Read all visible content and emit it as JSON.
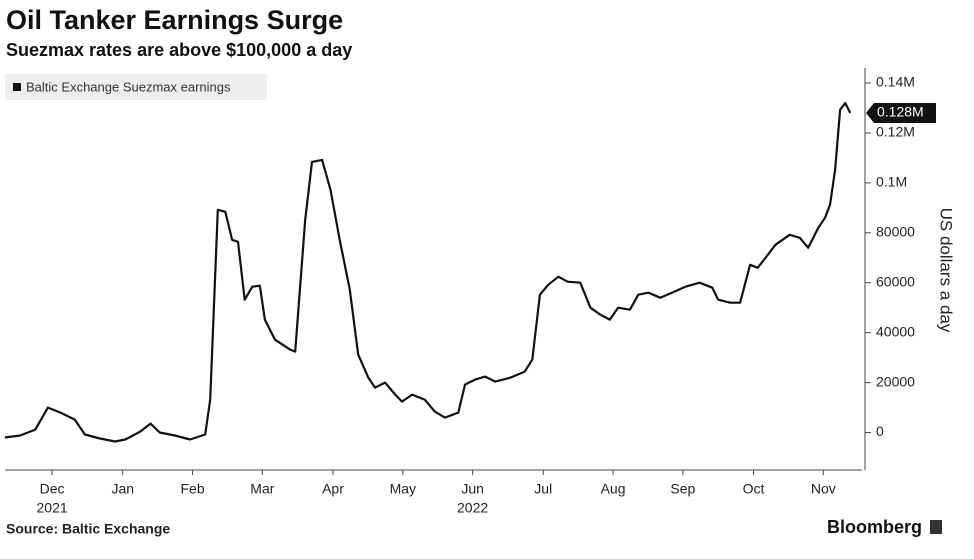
{
  "chart_data": {
    "type": "line",
    "title": "Oil Tanker Earnings Surge",
    "subtitle": "Suezmax rates are above $100,000 a day",
    "y_label": "US dollars a day",
    "source": "Source: Baltic Exchange",
    "brand": "Bloomberg",
    "legend": "top-left",
    "x": [
      2021.902,
      2021.92,
      2021.938,
      2021.953,
      2021.968,
      2021.985,
      2021.997,
      2022.015,
      2022.033,
      2022.045,
      2022.063,
      2022.075,
      2022.086,
      2022.104,
      2022.122,
      2022.14,
      2022.146,
      2022.155,
      2022.164,
      2022.172,
      2022.179,
      2022.187,
      2022.196,
      2022.205,
      2022.211,
      2022.223,
      2022.241,
      2022.247,
      2022.259,
      2022.267,
      2022.279,
      2022.289,
      2022.3,
      2022.312,
      2022.322,
      2022.334,
      2022.342,
      2022.354,
      2022.366,
      2022.374,
      2022.386,
      2022.401,
      2022.413,
      2022.425,
      2022.441,
      2022.449,
      2022.461,
      2022.473,
      2022.485,
      2022.503,
      2022.52,
      2022.529,
      2022.538,
      2022.548,
      2022.56,
      2022.571,
      2022.586,
      2022.598,
      2022.61,
      2022.621,
      2022.631,
      2022.645,
      2022.655,
      2022.667,
      2022.681,
      2022.695,
      2022.711,
      2022.728,
      2022.743,
      2022.75,
      2022.764,
      2022.776,
      2022.788,
      2022.797,
      2022.809,
      2022.818,
      2022.835,
      2022.847,
      2022.857,
      2022.869,
      2022.877,
      2022.883,
      2022.889,
      2022.895,
      2022.901,
      2022.907
    ],
    "series": [
      {
        "name": "Baltic Exchange Suezmax earnings",
        "color": "#111111",
        "values": [
          -2000,
          -1200,
          1200,
          10000,
          8000,
          5200,
          -800,
          -2400,
          -3600,
          -2800,
          400,
          3600,
          0,
          -1200,
          -2800,
          -800,
          13200,
          89200,
          88400,
          77200,
          76400,
          53200,
          58400,
          58800,
          45200,
          37200,
          33200,
          32400,
          85200,
          108400,
          109200,
          97200,
          77200,
          57200,
          31200,
          22000,
          18000,
          20000,
          15200,
          12400,
          15200,
          13200,
          8400,
          6000,
          8000,
          19200,
          21200,
          22400,
          20400,
          22000,
          24400,
          29200,
          55200,
          59200,
          62400,
          60400,
          60000,
          50000,
          47200,
          45200,
          50000,
          49200,
          55200,
          56000,
          54000,
          56000,
          58400,
          60000,
          58000,
          53200,
          52000,
          52000,
          67200,
          66000,
          71200,
          75200,
          79200,
          78000,
          74000,
          82000,
          86000,
          91200,
          105200,
          129200,
          132000,
          128000
        ],
        "value_labels": [
          null,
          null,
          null,
          null,
          null,
          null,
          null,
          null,
          null,
          null,
          null,
          null,
          null,
          null,
          null,
          null,
          null,
          null,
          null,
          null,
          null,
          null,
          null,
          null,
          null,
          null,
          null,
          null,
          null,
          null,
          null,
          null,
          null,
          null,
          null,
          null,
          null,
          null,
          null,
          null,
          null,
          null,
          null,
          null,
          null,
          null,
          null,
          null,
          null,
          null,
          null,
          null,
          null,
          null,
          null,
          null,
          null,
          null,
          null,
          null,
          null,
          null,
          null,
          null,
          null,
          null,
          null,
          null,
          null,
          null,
          null,
          null,
          null,
          null,
          null,
          null,
          null,
          null,
          null,
          null,
          null,
          null,
          null,
          null,
          null,
          "0.128M"
        ]
      }
    ],
    "xlim": [
      2021.902,
      2022.921
    ],
    "xticks": [
      {
        "value": 2021.958,
        "label": "Dec"
      },
      {
        "value": 2022.042,
        "label": "Jan"
      },
      {
        "value": 2022.125,
        "label": "Feb"
      },
      {
        "value": 2022.208,
        "label": "Mar"
      },
      {
        "value": 2022.292,
        "label": "Apr"
      },
      {
        "value": 2022.375,
        "label": "May"
      },
      {
        "value": 2022.458,
        "label": "Jun"
      },
      {
        "value": 2022.542,
        "label": "Jul"
      },
      {
        "value": 2022.625,
        "label": "Aug"
      },
      {
        "value": 2022.708,
        "label": "Sep"
      },
      {
        "value": 2022.792,
        "label": "Oct"
      },
      {
        "value": 2022.875,
        "label": "Nov"
      }
    ],
    "year_labels": [
      {
        "value": 2021.958,
        "label": "2021"
      },
      {
        "value": 2022.458,
        "label": "2022"
      }
    ],
    "ylim": [
      -15000,
      146000
    ],
    "yticks": [
      0,
      20000,
      40000,
      60000,
      80000,
      {
        "value": 100000,
        "label": "0.1M"
      },
      {
        "value": 120000,
        "label": "0.12M"
      },
      {
        "value": 140000,
        "label": "0.14M"
      }
    ],
    "grid": false
  }
}
